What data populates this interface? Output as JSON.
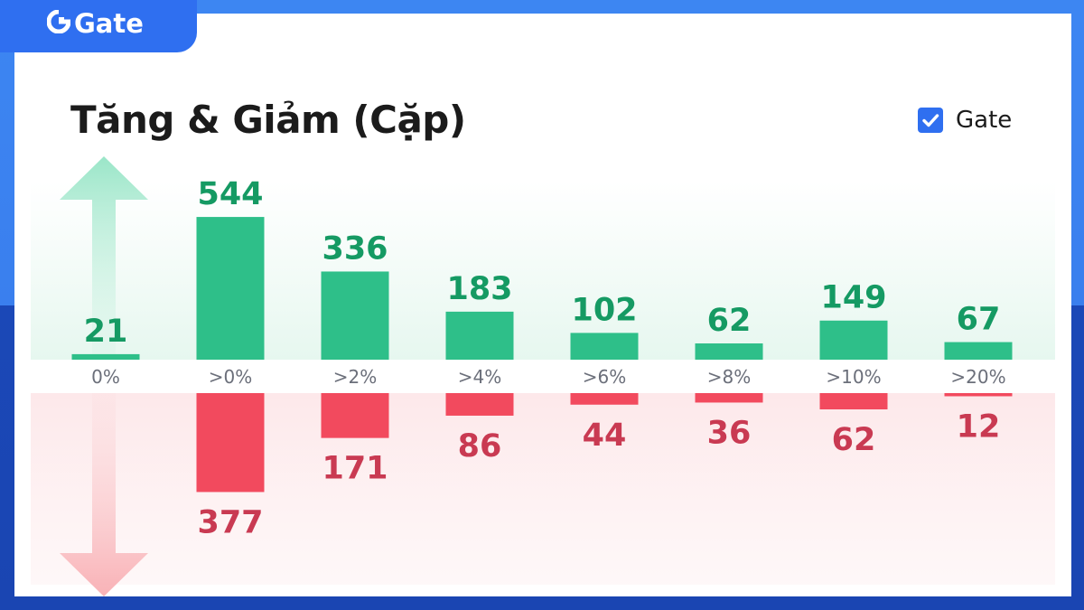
{
  "brand": {
    "logo_text": "Gate"
  },
  "colors": {
    "brand_blue": "#2f6ff0",
    "up_bar": "#2ebf89",
    "up_label": "#159a63",
    "down_bar": "#f24a5e",
    "down_label": "#c93a52",
    "tick_label": "#6b6f7a"
  },
  "icons": {
    "logo": "gate-logo-icon",
    "legend": "checkbox-checked-icon",
    "up": "arrow-up-icon",
    "down": "arrow-down-icon"
  },
  "chart_data": {
    "type": "bar",
    "title": "Tăng & Giảm (Cặp)",
    "legend": {
      "position": "top-right",
      "entries": [
        "Gate"
      ],
      "checked": true
    },
    "categories": [
      "0%",
      ">0%",
      ">2%",
      ">4%",
      ">6%",
      ">8%",
      ">10%",
      ">20%"
    ],
    "series": [
      {
        "values": [
          21,
          544,
          336,
          183,
          102,
          62,
          149,
          67
        ]
      },
      {
        "values": [
          0,
          377,
          171,
          86,
          44,
          36,
          62,
          12
        ]
      }
    ],
    "value_labels": {
      "up": [
        "21",
        "544",
        "336",
        "183",
        "102",
        "62",
        "149",
        "67"
      ],
      "down": [
        "",
        "377",
        "171",
        "86",
        "44",
        "36",
        "62",
        "12"
      ]
    },
    "grid": false
  }
}
